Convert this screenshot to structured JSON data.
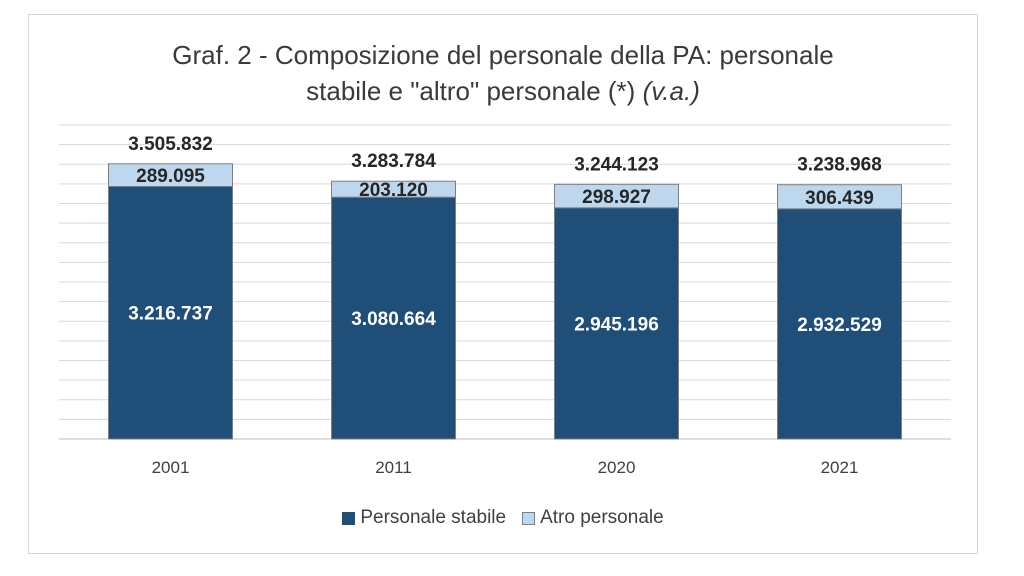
{
  "title": {
    "line1": "Graf. 2 - Composizione del personale della PA: personale",
    "line2": "stabile e \"altro\" personale (*)",
    "line2_italic": "(v.a.)"
  },
  "chart_data": {
    "type": "bar",
    "stacked": true,
    "categories": [
      "2001",
      "2011",
      "2020",
      "2021"
    ],
    "series": [
      {
        "name": "Personale stabile",
        "color": "#1f4e79",
        "values": [
          3216737,
          3080664,
          2945196,
          2932529
        ],
        "labels": [
          "3.216.737",
          "3.080.664",
          "2.945.196",
          "2.932.529"
        ]
      },
      {
        "name": "Atro personale",
        "color": "#bdd7ee",
        "values": [
          289095,
          203120,
          298927,
          306439
        ],
        "labels": [
          "289.095",
          "203.120",
          "298.927",
          "306.439"
        ]
      }
    ],
    "totals": [
      3505832,
      3283784,
      3244123,
      3238968
    ],
    "total_labels": [
      "3.505.832",
      "3.283.784",
      "3.244.123",
      "3.238.968"
    ],
    "ylim": [
      0,
      4000000
    ],
    "grid": true,
    "legend": "bottom"
  }
}
